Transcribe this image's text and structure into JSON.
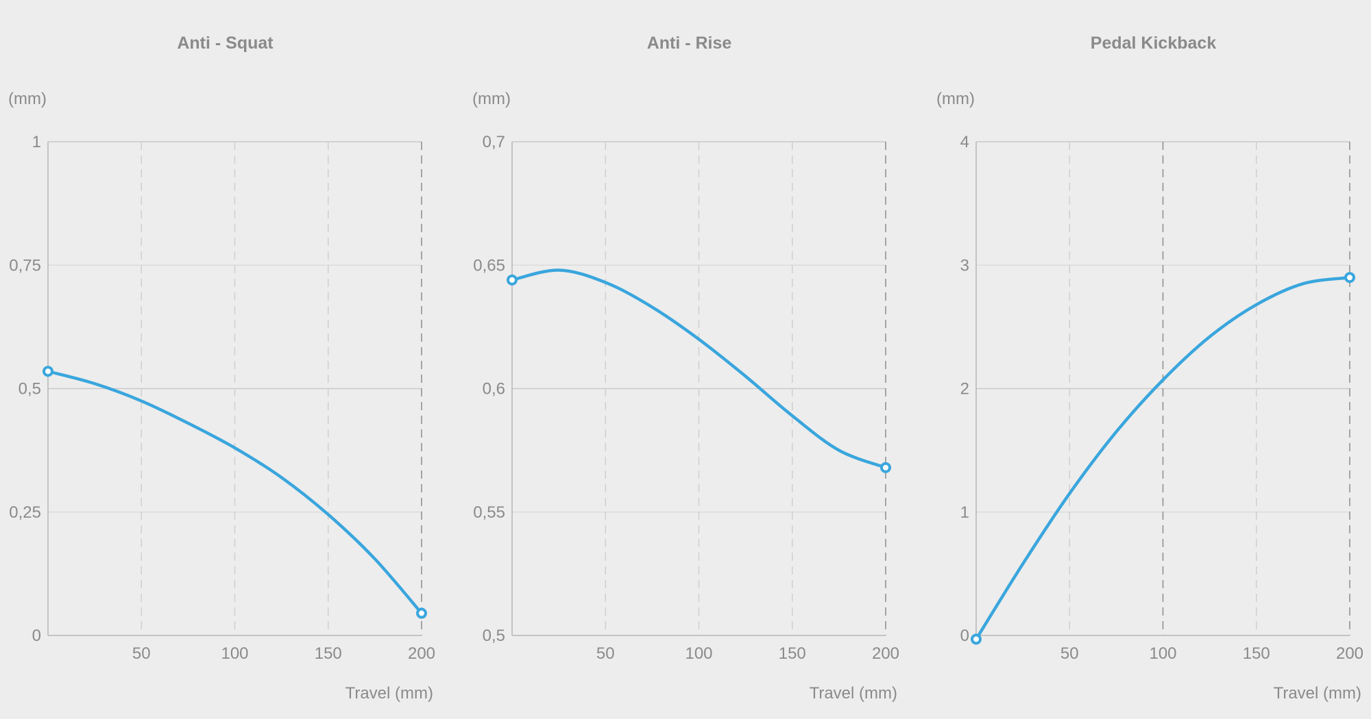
{
  "colors": {
    "line": "#3aa6dd",
    "text": "#8a8a8a",
    "background": "#ededed"
  },
  "chart_data": [
    {
      "type": "line",
      "title": "Anti - Squat",
      "ylabel": "(mm)",
      "xlabel": "Travel (mm)",
      "xlim": [
        0,
        200
      ],
      "ylim": [
        0,
        1
      ],
      "xticks": [
        50,
        100,
        150,
        200
      ],
      "xtick_labels": [
        "50",
        "100",
        "150",
        "200"
      ],
      "yticks": [
        0,
        0.25,
        0.5,
        0.75,
        1
      ],
      "ytick_labels": [
        "0",
        "0,25",
        "0,5",
        "0,75",
        "1"
      ],
      "dark_vgrid_at": [
        200
      ],
      "x": [
        0,
        25,
        50,
        75,
        100,
        125,
        150,
        175,
        200
      ],
      "y": [
        0.535,
        0.51,
        0.475,
        0.43,
        0.38,
        0.32,
        0.245,
        0.155,
        0.045
      ]
    },
    {
      "type": "line",
      "title": "Anti - Rise",
      "ylabel": "(mm)",
      "xlabel": "Travel (mm)",
      "xlim": [
        0,
        200
      ],
      "ylim": [
        0.5,
        0.7
      ],
      "xticks": [
        50,
        100,
        150,
        200
      ],
      "xtick_labels": [
        "50",
        "100",
        "150",
        "200"
      ],
      "yticks": [
        0.5,
        0.55,
        0.6,
        0.65,
        0.7
      ],
      "ytick_labels": [
        "0,5",
        "0,55",
        "0,6",
        "0,65",
        "0,7"
      ],
      "dark_vgrid_at": [
        200
      ],
      "x": [
        0,
        25,
        50,
        75,
        100,
        125,
        150,
        175,
        200
      ],
      "y": [
        0.644,
        0.648,
        0.643,
        0.633,
        0.62,
        0.605,
        0.589,
        0.575,
        0.568
      ]
    },
    {
      "type": "line",
      "title": "Pedal Kickback",
      "ylabel": "(mm)",
      "xlabel": "Travel (mm)",
      "xlim": [
        0,
        200
      ],
      "ylim": [
        0,
        4
      ],
      "xticks": [
        50,
        100,
        150,
        200
      ],
      "xtick_labels": [
        "50",
        "100",
        "150",
        "200"
      ],
      "yticks": [
        0,
        1,
        2,
        3,
        4
      ],
      "ytick_labels": [
        "0",
        "1",
        "2",
        "3",
        "4"
      ],
      "dark_vgrid_at": [
        100,
        200
      ],
      "x": [
        0,
        25,
        50,
        75,
        100,
        125,
        150,
        175,
        200
      ],
      "y": [
        -0.03,
        0.58,
        1.15,
        1.65,
        2.07,
        2.42,
        2.68,
        2.85,
        2.9
      ]
    }
  ]
}
